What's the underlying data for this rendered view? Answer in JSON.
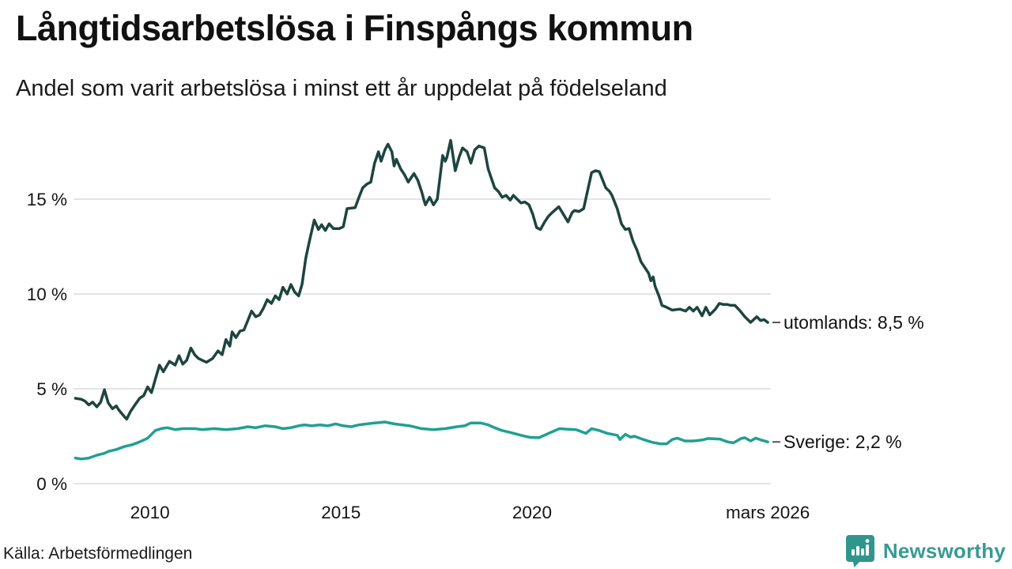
{
  "footer": {
    "brand": "Newsworthy"
  },
  "colors": {
    "text": "#141414",
    "grid": "#e4e4e8",
    "tick_dash": "#555555",
    "brand_teal": "#399a93",
    "brand_icon": "#2f968e",
    "series_utomlands": "#1d453e",
    "series_sverige": "#1fa092"
  },
  "chart_data": {
    "type": "line",
    "title": "Långtidsarbetslösa i Finspångs kommun",
    "subtitle": "Andel som varit arbetslösa i minst ett år uppdelat på födelseland",
    "source": "Källa: Arbetsförmedlingen",
    "grid": true,
    "legend_position": "line-end-labels",
    "x_axis": {
      "min": 2008.0,
      "max": 2026.25,
      "ticks": [
        {
          "label": "2010",
          "year": 2010
        },
        {
          "label": "2015",
          "year": 2015
        },
        {
          "label": "2020",
          "year": 2020
        },
        {
          "label": "mars 2026",
          "year": 2026.17
        }
      ]
    },
    "y_axis": {
      "min": 0,
      "max": 19.25,
      "unit": "%",
      "ticks": [
        {
          "label": "0 %",
          "value": 0
        },
        {
          "label": "5 %",
          "value": 5
        },
        {
          "label": "10 %",
          "value": 10
        },
        {
          "label": "15 %",
          "value": 15
        }
      ]
    },
    "series": [
      {
        "name": "utomlands",
        "end_label": "utomlands: 8,5 %",
        "last_value": "8,5 %",
        "color": "#1d453e",
        "points": [
          [
            2008.05,
            4.5
          ],
          [
            2008.2,
            4.45
          ],
          [
            2008.3,
            4.35
          ],
          [
            2008.4,
            4.15
          ],
          [
            2008.5,
            4.3
          ],
          [
            2008.61,
            4.05
          ],
          [
            2008.71,
            4.3
          ],
          [
            2008.81,
            4.95
          ],
          [
            2008.91,
            4.25
          ],
          [
            2009.02,
            3.95
          ],
          [
            2009.12,
            4.1
          ],
          [
            2009.18,
            3.9
          ],
          [
            2009.28,
            3.65
          ],
          [
            2009.39,
            3.4
          ],
          [
            2009.49,
            3.8
          ],
          [
            2009.59,
            4.1
          ],
          [
            2009.73,
            4.5
          ],
          [
            2009.84,
            4.65
          ],
          [
            2009.94,
            5.1
          ],
          [
            2010.04,
            4.8
          ],
          [
            2010.14,
            5.5
          ],
          [
            2010.25,
            6.25
          ],
          [
            2010.35,
            5.9
          ],
          [
            2010.51,
            6.45
          ],
          [
            2010.66,
            6.25
          ],
          [
            2010.76,
            6.75
          ],
          [
            2010.86,
            6.3
          ],
          [
            2010.96,
            6.5
          ],
          [
            2011.07,
            7.15
          ],
          [
            2011.17,
            6.8
          ],
          [
            2011.27,
            6.6
          ],
          [
            2011.48,
            6.4
          ],
          [
            2011.64,
            6.6
          ],
          [
            2011.78,
            7.0
          ],
          [
            2011.89,
            6.8
          ],
          [
            2011.99,
            7.6
          ],
          [
            2012.09,
            7.25
          ],
          [
            2012.15,
            8.0
          ],
          [
            2012.25,
            7.7
          ],
          [
            2012.36,
            8.05
          ],
          [
            2012.46,
            8.1
          ],
          [
            2012.56,
            8.6
          ],
          [
            2012.66,
            9.1
          ],
          [
            2012.77,
            8.8
          ],
          [
            2012.87,
            8.9
          ],
          [
            2012.97,
            9.25
          ],
          [
            2013.07,
            9.7
          ],
          [
            2013.18,
            9.5
          ],
          [
            2013.28,
            9.9
          ],
          [
            2013.38,
            9.7
          ],
          [
            2013.48,
            10.35
          ],
          [
            2013.59,
            10.0
          ],
          [
            2013.69,
            10.5
          ],
          [
            2013.79,
            10.1
          ],
          [
            2013.89,
            9.9
          ],
          [
            2013.98,
            10.5
          ],
          [
            2014.08,
            11.9
          ],
          [
            2014.18,
            12.85
          ],
          [
            2014.3,
            13.9
          ],
          [
            2014.41,
            13.4
          ],
          [
            2014.49,
            13.65
          ],
          [
            2014.59,
            13.35
          ],
          [
            2014.69,
            13.7
          ],
          [
            2014.8,
            13.45
          ],
          [
            2014.96,
            13.45
          ],
          [
            2015.06,
            13.55
          ],
          [
            2015.16,
            14.5
          ],
          [
            2015.37,
            14.55
          ],
          [
            2015.47,
            15.1
          ],
          [
            2015.57,
            15.6
          ],
          [
            2015.68,
            15.8
          ],
          [
            2015.78,
            15.9
          ],
          [
            2015.88,
            16.9
          ],
          [
            2015.98,
            17.5
          ],
          [
            2016.05,
            17.0
          ],
          [
            2016.15,
            17.6
          ],
          [
            2016.23,
            17.9
          ],
          [
            2016.33,
            17.5
          ],
          [
            2016.39,
            16.75
          ],
          [
            2016.45,
            17.1
          ],
          [
            2016.56,
            16.6
          ],
          [
            2016.66,
            16.3
          ],
          [
            2016.76,
            15.9
          ],
          [
            2016.91,
            16.35
          ],
          [
            2017.01,
            16.0
          ],
          [
            2017.11,
            15.4
          ],
          [
            2017.17,
            14.95
          ],
          [
            2017.21,
            14.7
          ],
          [
            2017.32,
            15.1
          ],
          [
            2017.42,
            14.7
          ],
          [
            2017.52,
            15.0
          ],
          [
            2017.66,
            17.3
          ],
          [
            2017.73,
            17.0
          ],
          [
            2017.77,
            17.2
          ],
          [
            2017.87,
            18.1
          ],
          [
            2017.99,
            16.5
          ],
          [
            2018.09,
            17.2
          ],
          [
            2018.18,
            17.7
          ],
          [
            2018.3,
            17.5
          ],
          [
            2018.4,
            16.9
          ],
          [
            2018.5,
            17.6
          ],
          [
            2018.61,
            17.8
          ],
          [
            2018.75,
            17.7
          ],
          [
            2018.85,
            16.6
          ],
          [
            2019.02,
            15.6
          ],
          [
            2019.12,
            15.4
          ],
          [
            2019.22,
            15.1
          ],
          [
            2019.32,
            15.2
          ],
          [
            2019.43,
            14.95
          ],
          [
            2019.51,
            15.2
          ],
          [
            2019.61,
            15.0
          ],
          [
            2019.71,
            14.8
          ],
          [
            2019.81,
            14.85
          ],
          [
            2019.92,
            14.7
          ],
          [
            2020.02,
            14.2
          ],
          [
            2020.12,
            13.5
          ],
          [
            2020.22,
            13.4
          ],
          [
            2020.33,
            13.8
          ],
          [
            2020.43,
            14.1
          ],
          [
            2020.53,
            14.3
          ],
          [
            2020.7,
            14.6
          ],
          [
            2020.82,
            14.2
          ],
          [
            2020.94,
            13.8
          ],
          [
            2021.05,
            14.3
          ],
          [
            2021.11,
            14.4
          ],
          [
            2021.23,
            14.35
          ],
          [
            2021.35,
            14.5
          ],
          [
            2021.46,
            15.5
          ],
          [
            2021.56,
            16.4
          ],
          [
            2021.66,
            16.5
          ],
          [
            2021.76,
            16.45
          ],
          [
            2021.87,
            15.9
          ],
          [
            2021.93,
            15.6
          ],
          [
            2022.03,
            15.4
          ],
          [
            2022.09,
            15.2
          ],
          [
            2022.17,
            14.8
          ],
          [
            2022.23,
            14.5
          ],
          [
            2022.34,
            13.7
          ],
          [
            2022.44,
            13.4
          ],
          [
            2022.54,
            13.45
          ],
          [
            2022.64,
            12.8
          ],
          [
            2022.75,
            12.3
          ],
          [
            2022.85,
            11.7
          ],
          [
            2022.95,
            11.4
          ],
          [
            2023.05,
            11.1
          ],
          [
            2023.11,
            10.7
          ],
          [
            2023.17,
            10.9
          ],
          [
            2023.22,
            10.4
          ],
          [
            2023.32,
            9.9
          ],
          [
            2023.4,
            9.4
          ],
          [
            2023.52,
            9.3
          ],
          [
            2023.67,
            9.15
          ],
          [
            2023.87,
            9.2
          ],
          [
            2024.02,
            9.1
          ],
          [
            2024.12,
            9.3
          ],
          [
            2024.22,
            9.1
          ],
          [
            2024.32,
            9.3
          ],
          [
            2024.45,
            8.85
          ],
          [
            2024.55,
            9.3
          ],
          [
            2024.65,
            8.9
          ],
          [
            2024.8,
            9.2
          ],
          [
            2024.9,
            9.5
          ],
          [
            2025.0,
            9.45
          ],
          [
            2025.1,
            9.45
          ],
          [
            2025.2,
            9.4
          ],
          [
            2025.31,
            9.4
          ],
          [
            2025.45,
            9.1
          ],
          [
            2025.57,
            8.8
          ],
          [
            2025.72,
            8.5
          ],
          [
            2025.88,
            8.8
          ],
          [
            2025.98,
            8.6
          ],
          [
            2026.07,
            8.65
          ],
          [
            2026.17,
            8.5
          ]
        ]
      },
      {
        "name": "Sverige",
        "end_label": "Sverige: 2,2 %",
        "last_value": "2,2 %",
        "color": "#1fa092",
        "points": [
          [
            2008.05,
            1.35
          ],
          [
            2008.2,
            1.3
          ],
          [
            2008.4,
            1.35
          ],
          [
            2008.61,
            1.5
          ],
          [
            2008.81,
            1.6
          ],
          [
            2008.91,
            1.7
          ],
          [
            2009.12,
            1.8
          ],
          [
            2009.32,
            1.95
          ],
          [
            2009.53,
            2.05
          ],
          [
            2009.73,
            2.2
          ],
          [
            2009.94,
            2.4
          ],
          [
            2010.14,
            2.8
          ],
          [
            2010.29,
            2.9
          ],
          [
            2010.45,
            2.95
          ],
          [
            2010.66,
            2.85
          ],
          [
            2010.86,
            2.9
          ],
          [
            2011.17,
            2.9
          ],
          [
            2011.37,
            2.85
          ],
          [
            2011.68,
            2.9
          ],
          [
            2011.99,
            2.85
          ],
          [
            2012.3,
            2.9
          ],
          [
            2012.56,
            3.0
          ],
          [
            2012.77,
            2.95
          ],
          [
            2013.01,
            3.05
          ],
          [
            2013.28,
            3.0
          ],
          [
            2013.48,
            2.9
          ],
          [
            2013.69,
            2.95
          ],
          [
            2013.89,
            3.05
          ],
          [
            2014.04,
            3.1
          ],
          [
            2014.24,
            3.05
          ],
          [
            2014.45,
            3.1
          ],
          [
            2014.65,
            3.05
          ],
          [
            2014.86,
            3.15
          ],
          [
            2015.06,
            3.05
          ],
          [
            2015.27,
            3.0
          ],
          [
            2015.47,
            3.1
          ],
          [
            2015.68,
            3.15
          ],
          [
            2015.88,
            3.2
          ],
          [
            2016.15,
            3.25
          ],
          [
            2016.39,
            3.15
          ],
          [
            2016.6,
            3.1
          ],
          [
            2016.8,
            3.05
          ],
          [
            2017.11,
            2.9
          ],
          [
            2017.42,
            2.85
          ],
          [
            2017.73,
            2.9
          ],
          [
            2018.03,
            3.0
          ],
          [
            2018.24,
            3.05
          ],
          [
            2018.4,
            3.2
          ],
          [
            2018.65,
            3.2
          ],
          [
            2018.85,
            3.1
          ],
          [
            2019.02,
            2.95
          ],
          [
            2019.22,
            2.8
          ],
          [
            2019.43,
            2.7
          ],
          [
            2019.71,
            2.55
          ],
          [
            2019.92,
            2.45
          ],
          [
            2020.18,
            2.42
          ],
          [
            2020.49,
            2.7
          ],
          [
            2020.72,
            2.9
          ],
          [
            2020.92,
            2.87
          ],
          [
            2021.15,
            2.85
          ],
          [
            2021.41,
            2.65
          ],
          [
            2021.56,
            2.9
          ],
          [
            2021.76,
            2.8
          ],
          [
            2021.97,
            2.65
          ],
          [
            2022.23,
            2.55
          ],
          [
            2022.3,
            2.33
          ],
          [
            2022.44,
            2.6
          ],
          [
            2022.58,
            2.45
          ],
          [
            2022.68,
            2.5
          ],
          [
            2022.91,
            2.33
          ],
          [
            2023.11,
            2.2
          ],
          [
            2023.22,
            2.15
          ],
          [
            2023.36,
            2.1
          ],
          [
            2023.52,
            2.1
          ],
          [
            2023.67,
            2.33
          ],
          [
            2023.8,
            2.4
          ],
          [
            2024.0,
            2.25
          ],
          [
            2024.22,
            2.25
          ],
          [
            2024.45,
            2.3
          ],
          [
            2024.6,
            2.38
          ],
          [
            2024.92,
            2.35
          ],
          [
            2025.12,
            2.2
          ],
          [
            2025.27,
            2.15
          ],
          [
            2025.47,
            2.38
          ],
          [
            2025.57,
            2.42
          ],
          [
            2025.72,
            2.25
          ],
          [
            2025.85,
            2.4
          ],
          [
            2026.0,
            2.3
          ],
          [
            2026.17,
            2.2
          ]
        ]
      }
    ]
  }
}
